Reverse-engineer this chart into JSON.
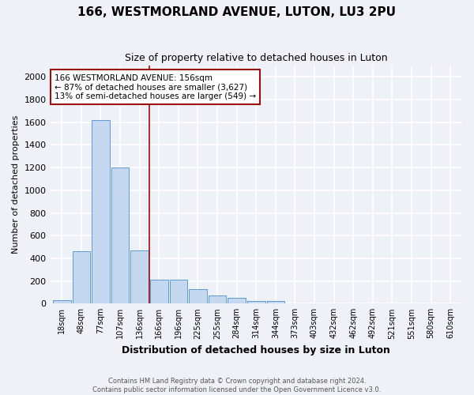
{
  "title": "166, WESTMORLAND AVENUE, LUTON, LU3 2PU",
  "subtitle": "Size of property relative to detached houses in Luton",
  "xlabel": "Distribution of detached houses by size in Luton",
  "ylabel": "Number of detached properties",
  "bins": [
    "18sqm",
    "48sqm",
    "77sqm",
    "107sqm",
    "136sqm",
    "166sqm",
    "196sqm",
    "225sqm",
    "255sqm",
    "284sqm",
    "314sqm",
    "344sqm",
    "373sqm",
    "403sqm",
    "432sqm",
    "462sqm",
    "492sqm",
    "521sqm",
    "551sqm",
    "580sqm",
    "610sqm"
  ],
  "values": [
    30,
    460,
    1620,
    1200,
    470,
    210,
    210,
    130,
    70,
    50,
    20,
    20,
    0,
    0,
    0,
    0,
    0,
    0,
    0,
    0,
    0
  ],
  "bar_color": "#c5d8ef",
  "bar_edge_color": "#5b9bd5",
  "vline_x_index": 4.5,
  "vline_color": "#9b1010",
  "annotation_text": "166 WESTMORLAND AVENUE: 156sqm\n← 87% of detached houses are smaller (3,627)\n13% of semi-detached houses are larger (549) →",
  "annotation_box_color": "white",
  "annotation_box_edge_color": "#9b1010",
  "ylim": [
    0,
    2100
  ],
  "yticks": [
    0,
    200,
    400,
    600,
    800,
    1000,
    1200,
    1400,
    1600,
    1800,
    2000
  ],
  "footnote": "Contains HM Land Registry data © Crown copyright and database right 2024.\nContains public sector information licensed under the Open Government Licence v3.0.",
  "background_color": "#eef2f8",
  "plot_bg_color": "#eef2f8",
  "title_fontsize": 11,
  "subtitle_fontsize": 9,
  "xlabel_fontsize": 9,
  "ylabel_fontsize": 8
}
